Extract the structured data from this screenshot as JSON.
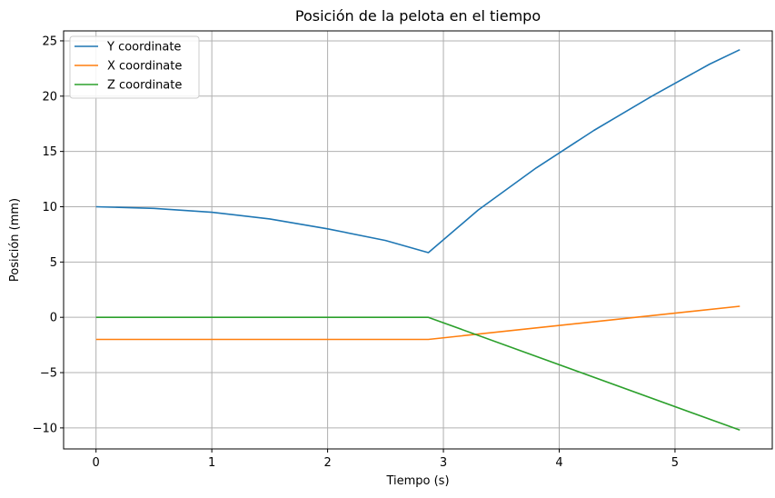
{
  "chart_data": {
    "type": "line",
    "title": "Posición de la pelota en el tiempo",
    "xlabel": "Tiempo (s)",
    "ylabel": "Posición (mm)",
    "xlim": [
      -0.28,
      5.84
    ],
    "ylim": [
      -11.9,
      25.9
    ],
    "xticks": [
      0,
      1,
      2,
      3,
      4,
      5
    ],
    "yticks": [
      -10,
      -5,
      0,
      5,
      10,
      15,
      20,
      25
    ],
    "ytick_labels": [
      "−10",
      "−5",
      "0",
      "5",
      "10",
      "15",
      "20",
      "25"
    ],
    "grid": true,
    "legend_position": "top-left",
    "series": [
      {
        "name": "Y coordinate",
        "color": "#1f77b4",
        "x": [
          0,
          0.5,
          1.0,
          1.5,
          2.0,
          2.5,
          2.87,
          3.3,
          3.8,
          4.3,
          4.8,
          5.3,
          5.56
        ],
        "y": [
          10.0,
          9.85,
          9.5,
          8.9,
          8.0,
          6.95,
          5.85,
          9.7,
          13.5,
          16.9,
          20.0,
          22.9,
          24.2
        ]
      },
      {
        "name": "X coordinate",
        "color": "#ff7f0e",
        "x": [
          0,
          2.87,
          5.56
        ],
        "y": [
          -2.0,
          -2.0,
          1.0
        ]
      },
      {
        "name": "Z coordinate",
        "color": "#2ca02c",
        "x": [
          0,
          2.87,
          5.56
        ],
        "y": [
          0.0,
          0.0,
          -10.2
        ]
      }
    ]
  }
}
